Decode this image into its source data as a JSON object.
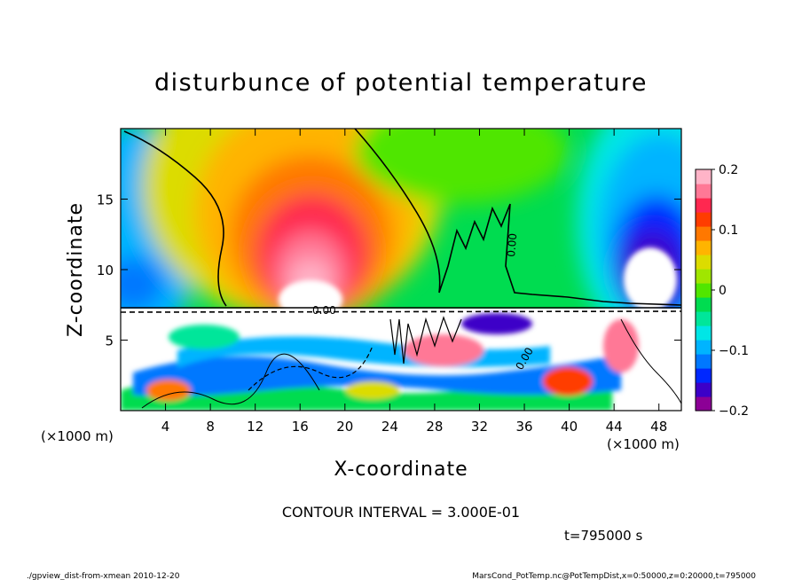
{
  "chart_data": {
    "type": "heatmap",
    "title": "disturbunce of potential temperature",
    "xlabel": "X-coordinate",
    "ylabel": "Z-coordinate",
    "x_unit": "(×1000 m)",
    "y_unit": "(×1000 m)",
    "xlim": [
      0,
      50
    ],
    "ylim": [
      0,
      20
    ],
    "x_ticks": [
      4,
      8,
      12,
      16,
      20,
      24,
      28,
      32,
      36,
      40,
      44,
      48
    ],
    "y_ticks": [
      5,
      10,
      15
    ],
    "colorbar": {
      "range": [
        -0.2,
        0.2
      ],
      "ticks": [
        {
          "value": 0.2,
          "label": "0.2"
        },
        {
          "value": 0.1,
          "label": "0.1"
        },
        {
          "value": 0.0,
          "label": "0"
        },
        {
          "value": -0.1,
          "label": "−0.1"
        },
        {
          "value": -0.2,
          "label": "−0.2"
        }
      ],
      "colors": [
        "#8c0096",
        "#3c00c8",
        "#0028ff",
        "#0078ff",
        "#00b4ff",
        "#00e6e6",
        "#00e69a",
        "#00dc50",
        "#50e600",
        "#a0e600",
        "#dcdc00",
        "#ffb400",
        "#ff7800",
        "#ff3c00",
        "#ff2850",
        "#ff7896",
        "#ffb4c8"
      ]
    },
    "contour_interval": "CONTOUR INTERVAL = 3.000E-01",
    "contour_labels": [
      "0.00",
      "0.00",
      "0.00"
    ],
    "time_label": "t=795000 s",
    "field_structure": {
      "upper_layer_z_range": [
        7.5,
        20
      ],
      "lower_layer_z_range": [
        0,
        7.5
      ],
      "warm_core_x_z": [
        17,
        11
      ],
      "cold_core_x_z": [
        47.5,
        10
      ],
      "white_saturated_regions_x_z": [
        [
          17.5,
          8.5
        ],
        [
          47.5,
          10.5
        ]
      ]
    }
  },
  "footer": {
    "left": "./gpview_dist-from-xmean  2010-12-20",
    "right": "MarsCond_PotTemp.nc@PotTempDist,x=0:50000,z=0:20000,t=795000"
  }
}
